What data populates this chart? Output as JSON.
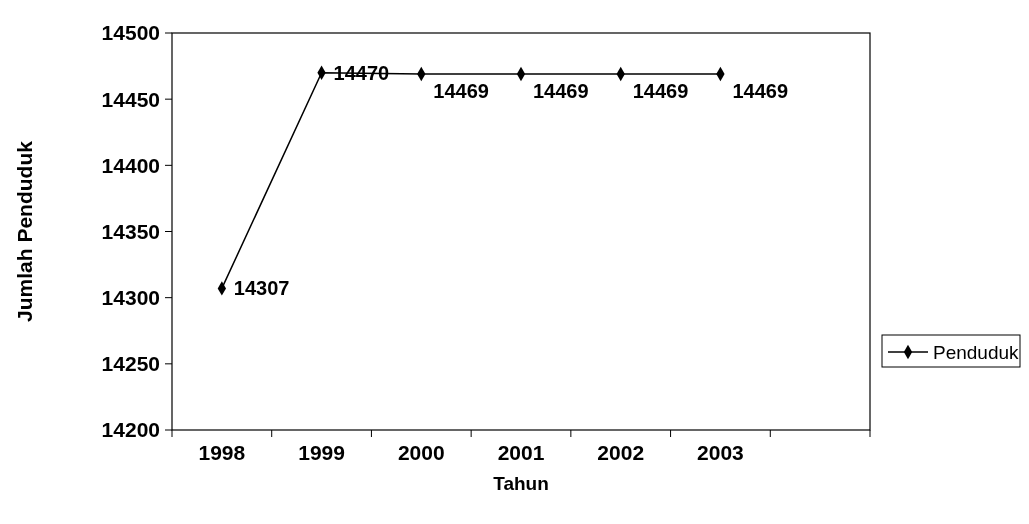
{
  "chart_data": {
    "type": "line",
    "xlabel": "Tahun",
    "ylabel": "Jumlah Penduduk",
    "categories": [
      "1998",
      "1999",
      "2000",
      "2001",
      "2002",
      "2003",
      null
    ],
    "series": [
      {
        "name": "Penduduk",
        "color": "#000000",
        "values": [
          14307,
          14470,
          14469,
          14469,
          14469,
          14469,
          null
        ]
      }
    ],
    "ylim": [
      14200,
      14500
    ],
    "yticks": [
      14200,
      14250,
      14300,
      14350,
      14400,
      14450,
      14500
    ],
    "data_labels": true,
    "marker": "diamond",
    "line_style": "solid",
    "legend": "right",
    "grid": false
  }
}
